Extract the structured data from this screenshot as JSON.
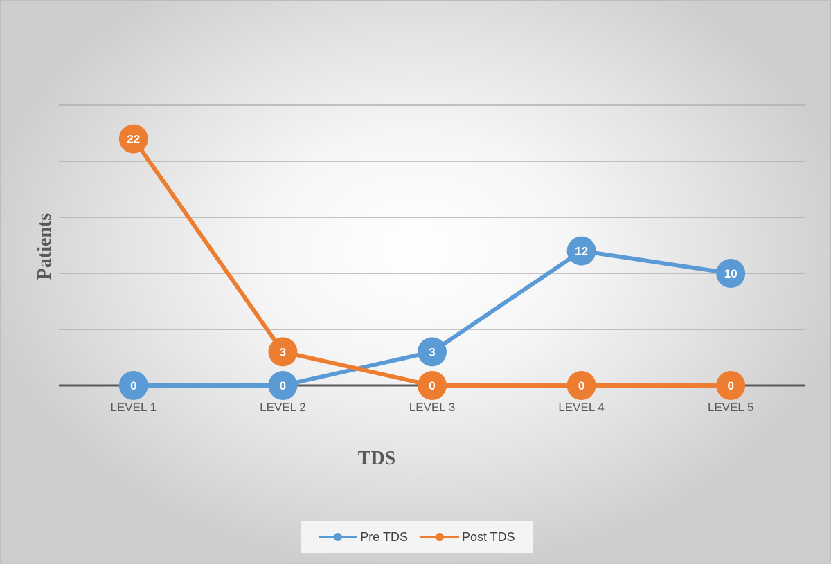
{
  "chart_data": {
    "type": "line",
    "xlabel": "TDS",
    "ylabel": "Patients",
    "categories": [
      "LEVEL 1",
      "LEVEL 2",
      "LEVEL 3",
      "LEVEL 4",
      "LEVEL 5"
    ],
    "ylim": [
      0,
      25
    ],
    "grid": true,
    "legend": "bottom",
    "data_labels": true,
    "series": [
      {
        "name": "Pre TDS",
        "values": [
          0,
          0,
          3,
          12,
          10
        ],
        "color": "#5B9BD5"
      },
      {
        "name": "Post TDS",
        "values": [
          22,
          3,
          0,
          0,
          0
        ],
        "color": "#ED7D31"
      }
    ]
  }
}
